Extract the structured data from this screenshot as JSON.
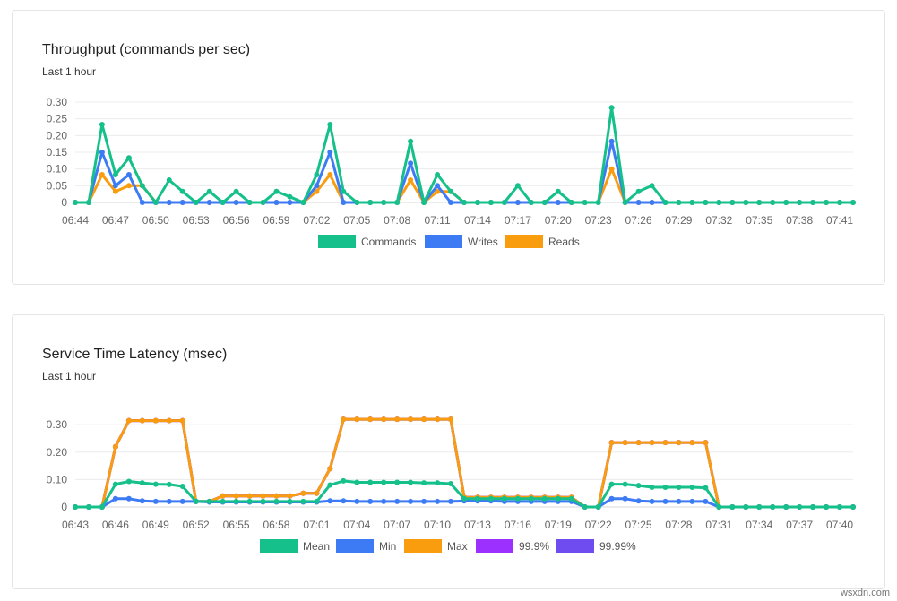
{
  "watermark": "wsxdn.com",
  "charts": [
    {
      "title": "Throughput (commands per sec)",
      "subtitle": "Last 1 hour",
      "chart_data": {
        "type": "line",
        "title": "Throughput (commands per sec)",
        "xlabel": "",
        "ylabel": "",
        "ylim": [
          0,
          0.3
        ],
        "yticks": [
          "0.30",
          "0.25",
          "0.20",
          "0.15",
          "0.10",
          "0.05",
          "0"
        ],
        "ytick_values": [
          0.3,
          0.25,
          0.2,
          0.15,
          0.1,
          0.05,
          0
        ],
        "xtick_labels": [
          "06:44",
          "06:47",
          "06:50",
          "06:53",
          "06:56",
          "06:59",
          "07:02",
          "07:05",
          "07:08",
          "07:11",
          "07:14",
          "07:17",
          "07:20",
          "07:23",
          "07:26",
          "07:29",
          "07:32",
          "07:35",
          "07:38",
          "07:41"
        ],
        "grid": true,
        "legend_position": "bottom",
        "series": [
          {
            "name": "Commands",
            "color": "#16c08a",
            "values": [
              0,
              0,
              0.233,
              0.083,
              0.133,
              0.05,
              0,
              0.067,
              0.033,
              0,
              0.033,
              0,
              0.033,
              0,
              0,
              0.033,
              0.017,
              0,
              0.083,
              0.233,
              0.033,
              0,
              0,
              0,
              0,
              0.183,
              0,
              0.083,
              0.033,
              0,
              0,
              0,
              0,
              0.05,
              0,
              0,
              0.033,
              0,
              0,
              0,
              0.283,
              0,
              0.033,
              0.05,
              0,
              0,
              0,
              0,
              0,
              0,
              0,
              0,
              0,
              0,
              0,
              0,
              0,
              0,
              0
            ]
          },
          {
            "name": "Writes",
            "color": "#3d7bf5",
            "values": [
              0,
              0,
              0.15,
              0.05,
              0.083,
              0,
              0,
              0,
              0,
              0,
              0,
              0,
              0,
              0,
              0,
              0,
              0,
              0,
              0.05,
              0.15,
              0,
              0,
              0,
              0,
              0,
              0.117,
              0,
              0.05,
              0,
              0,
              0,
              0,
              0,
              0,
              0,
              0,
              0,
              0,
              0,
              0,
              0.183,
              0,
              0,
              0,
              0,
              0,
              0,
              0,
              0,
              0,
              0,
              0,
              0,
              0,
              0,
              0,
              0,
              0,
              0
            ]
          },
          {
            "name": "Reads",
            "color": "#f99d0f",
            "values": [
              0,
              0,
              0.083,
              0.033,
              0.05,
              0.05,
              0,
              0,
              0,
              0,
              0,
              0,
              0,
              0,
              0,
              0,
              0,
              0,
              0.033,
              0.083,
              0,
              0,
              0,
              0,
              0,
              0.067,
              0,
              0.033,
              0.033,
              0,
              0,
              0,
              0,
              0,
              0,
              0,
              0,
              0,
              0,
              0,
              0.1,
              0,
              0,
              0,
              0,
              0,
              0,
              0,
              0,
              0,
              0,
              0,
              0,
              0,
              0,
              0,
              0,
              0,
              0
            ]
          }
        ]
      }
    },
    {
      "title": "Service Time Latency (msec)",
      "subtitle": "Last 1 hour",
      "chart_data": {
        "type": "line",
        "title": "Service Time Latency (msec)",
        "xlabel": "",
        "ylabel": "",
        "ylim": [
          0,
          0.33
        ],
        "yticks": [
          "0.30",
          "0.20",
          "0.10",
          "0"
        ],
        "ytick_values": [
          0.3,
          0.2,
          0.1,
          0
        ],
        "xtick_labels": [
          "06:43",
          "06:46",
          "06:49",
          "06:52",
          "06:55",
          "06:58",
          "07:01",
          "07:04",
          "07:07",
          "07:10",
          "07:13",
          "07:16",
          "07:19",
          "07:22",
          "07:25",
          "07:28",
          "07:31",
          "07:34",
          "07:37",
          "07:40"
        ],
        "grid": true,
        "legend_position": "bottom",
        "series": [
          {
            "name": "Mean",
            "color": "#16c08a",
            "values": [
              0,
              0,
              0,
              0.083,
              0.093,
              0.088,
              0.083,
              0.082,
              0.075,
              0.02,
              0.02,
              0.02,
              0.02,
              0.02,
              0.02,
              0.02,
              0.02,
              0.02,
              0.02,
              0.08,
              0.095,
              0.09,
              0.09,
              0.09,
              0.09,
              0.09,
              0.088,
              0.088,
              0.085,
              0.03,
              0.03,
              0.03,
              0.03,
              0.03,
              0.03,
              0.03,
              0.03,
              0.03,
              0,
              0,
              0.083,
              0.083,
              0.078,
              0.072,
              0.072,
              0.072,
              0.072,
              0.07,
              0,
              0,
              0,
              0,
              0,
              0,
              0,
              0,
              0,
              0,
              0
            ]
          },
          {
            "name": "Min",
            "color": "#3d7bf5",
            "values": [
              0,
              0,
              0,
              0.03,
              0.03,
              0.022,
              0.02,
              0.02,
              0.02,
              0.02,
              0.018,
              0.018,
              0.018,
              0.018,
              0.018,
              0.018,
              0.018,
              0.018,
              0.018,
              0.022,
              0.022,
              0.02,
              0.02,
              0.02,
              0.02,
              0.02,
              0.02,
              0.02,
              0.02,
              0.022,
              0.022,
              0.022,
              0.02,
              0.02,
              0.02,
              0.02,
              0.02,
              0.02,
              0,
              0,
              0.03,
              0.03,
              0.022,
              0.02,
              0.02,
              0.02,
              0.02,
              0.02,
              0,
              0,
              0,
              0,
              0,
              0,
              0,
              0,
              0,
              0,
              0
            ]
          },
          {
            "name": "Max",
            "color": "#f99d0f",
            "values": [
              0,
              0,
              0,
              0.22,
              0.315,
              0.315,
              0.315,
              0.315,
              0.315,
              0.02,
              0.02,
              0.04,
              0.04,
              0.04,
              0.04,
              0.04,
              0.04,
              0.05,
              0.05,
              0.14,
              0.32,
              0.32,
              0.32,
              0.32,
              0.32,
              0.32,
              0.32,
              0.32,
              0.32,
              0.035,
              0.035,
              0.035,
              0.035,
              0.035,
              0.035,
              0.035,
              0.035,
              0.035,
              0,
              0,
              0.235,
              0.235,
              0.235,
              0.235,
              0.235,
              0.235,
              0.235,
              0.235,
              0,
              0,
              0,
              0,
              0,
              0,
              0,
              0,
              0,
              0,
              0
            ]
          },
          {
            "name": "99.9%",
            "color": "#9b30ff",
            "values": [
              0,
              0,
              0,
              0.22,
              0.315,
              0.315,
              0.315,
              0.315,
              0.315,
              0.02,
              0.02,
              0.04,
              0.04,
              0.04,
              0.04,
              0.04,
              0.04,
              0.05,
              0.05,
              0.14,
              0.32,
              0.32,
              0.32,
              0.32,
              0.32,
              0.32,
              0.32,
              0.32,
              0.32,
              0.035,
              0.035,
              0.035,
              0.035,
              0.035,
              0.035,
              0.035,
              0.035,
              0.035,
              0,
              0,
              0.235,
              0.235,
              0.235,
              0.235,
              0.235,
              0.235,
              0.235,
              0.235,
              0,
              0,
              0,
              0,
              0,
              0,
              0,
              0,
              0,
              0,
              0
            ]
          },
          {
            "name": "99.99%",
            "color": "#6f4cf0",
            "values": [
              0,
              0,
              0,
              0.22,
              0.315,
              0.315,
              0.315,
              0.315,
              0.315,
              0.02,
              0.02,
              0.04,
              0.04,
              0.04,
              0.04,
              0.04,
              0.04,
              0.05,
              0.05,
              0.14,
              0.32,
              0.32,
              0.32,
              0.32,
              0.32,
              0.32,
              0.32,
              0.32,
              0.32,
              0.035,
              0.035,
              0.035,
              0.035,
              0.035,
              0.035,
              0.035,
              0.035,
              0.035,
              0,
              0,
              0.235,
              0.235,
              0.235,
              0.235,
              0.235,
              0.235,
              0.235,
              0.235,
              0,
              0,
              0,
              0,
              0,
              0,
              0,
              0,
              0,
              0,
              0
            ]
          }
        ]
      }
    }
  ]
}
